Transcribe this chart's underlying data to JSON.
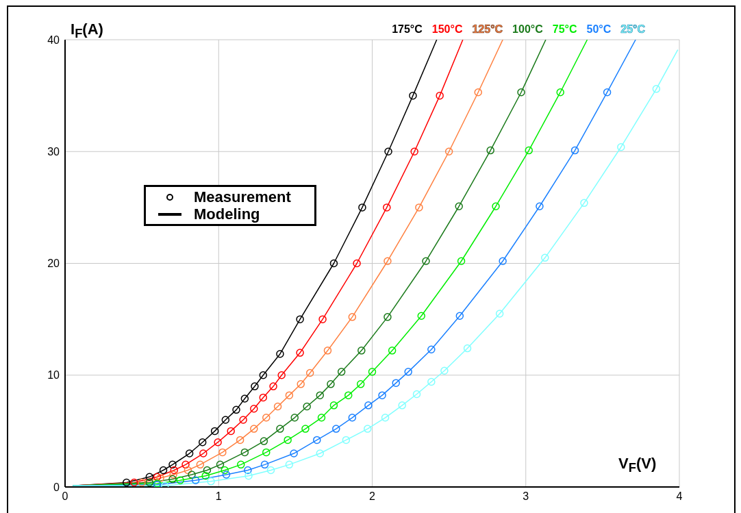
{
  "chart_data": {
    "type": "line",
    "xlabel": "V$_{F}$(V)",
    "ylabel": "I$_{F}$(A)",
    "xlim": [
      0,
      4
    ],
    "xticks": [
      0,
      1,
      2,
      3,
      4
    ],
    "ylim": [
      0,
      40
    ],
    "yticks": [
      0,
      10,
      20,
      30,
      40
    ],
    "grid": true,
    "legend": "top right",
    "annotations": [
      "Measurement",
      "Modeling"
    ],
    "series": [
      {
        "name": "175°C",
        "type": "line",
        "color": "#000000",
        "x": [
          0.05,
          0.4,
          0.55,
          0.64,
          0.7,
          0.81,
          0.895,
          0.975,
          1.045,
          1.115,
          1.17,
          1.235,
          1.29,
          1.4,
          1.53,
          1.75,
          1.935,
          2.105,
          2.265,
          2.42
        ],
        "values": [
          0.1,
          0.4,
          0.9,
          1.5,
          2,
          3,
          4,
          5,
          6,
          6.9,
          7.9,
          9,
          10,
          11.9,
          15,
          20,
          25,
          30,
          35,
          40
        ]
      },
      {
        "type": "scatter",
        "marker": "circle",
        "color": "#000000",
        "x": [
          0.4,
          0.55,
          0.64,
          0.7,
          0.81,
          0.895,
          0.975,
          1.045,
          1.115,
          1.17,
          1.235,
          1.29,
          1.4,
          1.53,
          1.75,
          1.935,
          2.105,
          2.265
        ],
        "values": [
          0.4,
          0.9,
          1.5,
          2,
          3,
          4,
          5,
          6,
          6.9,
          7.9,
          9,
          10,
          11.9,
          15,
          20,
          25,
          30,
          35
        ]
      },
      {
        "name": "150°C",
        "type": "line",
        "color": "#ff0000",
        "x": [
          0.05,
          0.45,
          0.6,
          0.71,
          0.785,
          0.9,
          0.995,
          1.08,
          1.16,
          1.23,
          1.29,
          1.356,
          1.41,
          1.53,
          1.677,
          1.9,
          2.095,
          2.275,
          2.44,
          2.59
        ],
        "values": [
          0.1,
          0.4,
          0.9,
          1.5,
          2,
          3,
          4,
          5,
          6,
          7,
          8,
          9,
          10,
          12,
          15,
          20,
          25,
          30,
          35,
          40
        ]
      },
      {
        "type": "scatter",
        "marker": "circle",
        "color": "#ff0000",
        "x": [
          0.45,
          0.6,
          0.71,
          0.785,
          0.9,
          0.995,
          1.08,
          1.16,
          1.23,
          1.29,
          1.356,
          1.41,
          1.53,
          1.677,
          1.9,
          2.095,
          2.275,
          2.44
        ],
        "values": [
          0.4,
          0.9,
          1.5,
          2,
          3,
          4,
          5,
          6,
          7,
          8,
          9,
          10,
          12,
          15,
          20,
          25,
          30,
          35
        ]
      },
      {
        "name": "125°C",
        "type": "line",
        "color": "#ff8040",
        "x": [
          0.05,
          0.5,
          0.62,
          0.705,
          0.8,
          0.88,
          1.025,
          1.14,
          1.23,
          1.31,
          1.385,
          1.46,
          1.535,
          1.595,
          1.71,
          1.87,
          2.1,
          2.305,
          2.5,
          2.69,
          2.85
        ],
        "values": [
          0.1,
          0.4,
          0.8,
          1.1,
          1.5,
          2,
          3.1,
          4.2,
          5.2,
          6.2,
          7.2,
          8.2,
          9.2,
          10.2,
          12.2,
          15.2,
          20.2,
          25,
          30,
          35.3,
          40
        ]
      },
      {
        "type": "scatter",
        "marker": "circle",
        "color": "#ff8040",
        "x": [
          0.5,
          0.62,
          0.705,
          0.8,
          0.88,
          1.025,
          1.14,
          1.23,
          1.31,
          1.385,
          1.46,
          1.535,
          1.595,
          1.71,
          1.87,
          2.1,
          2.305,
          2.5,
          2.69
        ],
        "values": [
          0.4,
          0.8,
          1.1,
          1.5,
          2,
          3.1,
          4.2,
          5.2,
          6.2,
          7.2,
          8.2,
          9.2,
          10.2,
          12.2,
          15.2,
          20.2,
          25,
          30,
          35.3
        ]
      },
      {
        "name": "100°C",
        "type": "line",
        "color": "#1a7a1a",
        "x": [
          0.05,
          0.55,
          0.7,
          0.825,
          0.925,
          1.01,
          1.17,
          1.295,
          1.4,
          1.495,
          1.575,
          1.66,
          1.73,
          1.8,
          1.93,
          2.1,
          2.35,
          2.565,
          2.77,
          2.97,
          3.13
        ],
        "values": [
          0.1,
          0.4,
          0.7,
          1.1,
          1.5,
          2,
          3.1,
          4.1,
          5.2,
          6.2,
          7.2,
          8.2,
          9.2,
          10.3,
          12.2,
          15.2,
          20.2,
          25.1,
          30.1,
          35.3,
          40
        ]
      },
      {
        "type": "scatter",
        "marker": "circle",
        "color": "#1a7a1a",
        "x": [
          0.55,
          0.7,
          0.825,
          0.925,
          1.01,
          1.17,
          1.295,
          1.4,
          1.495,
          1.575,
          1.66,
          1.73,
          1.8,
          1.93,
          2.1,
          2.35,
          2.565,
          2.77,
          2.97
        ],
        "values": [
          0.4,
          0.7,
          1.1,
          1.5,
          2,
          3.1,
          4.1,
          5.2,
          6.2,
          7.2,
          8.2,
          9.2,
          10.3,
          12.2,
          15.2,
          20.2,
          25.1,
          30.1,
          35.3
        ]
      },
      {
        "name": "75°C",
        "type": "line",
        "color": "#00ee00",
        "x": [
          0.05,
          0.6,
          0.75,
          0.915,
          1.04,
          1.145,
          1.31,
          1.45,
          1.565,
          1.67,
          1.75,
          1.845,
          1.925,
          2.0,
          2.13,
          2.32,
          2.58,
          2.805,
          3.02,
          3.225,
          3.4
        ],
        "values": [
          0.1,
          0.3,
          0.6,
          1,
          1.5,
          2,
          3.1,
          4.2,
          5.2,
          6.2,
          7.3,
          8.2,
          9.2,
          10.3,
          12.2,
          15.3,
          20.2,
          25.1,
          30.1,
          35.3,
          40
        ]
      },
      {
        "type": "scatter",
        "marker": "circle",
        "color": "#00ee00",
        "x": [
          0.6,
          0.75,
          0.915,
          1.04,
          1.145,
          1.31,
          1.45,
          1.565,
          1.67,
          1.75,
          1.845,
          1.925,
          2.0,
          2.13,
          2.32,
          2.58,
          2.805,
          3.02,
          3.225
        ],
        "values": [
          0.3,
          0.6,
          1,
          1.5,
          2,
          3.1,
          4.2,
          5.2,
          6.2,
          7.3,
          8.2,
          9.2,
          10.3,
          12.2,
          15.3,
          20.2,
          25.1,
          30.1,
          35.3
        ]
      },
      {
        "name": "50°C",
        "type": "line",
        "color": "#1a80ff",
        "x": [
          0.05,
          0.6,
          0.85,
          1.05,
          1.19,
          1.3,
          1.49,
          1.64,
          1.765,
          1.87,
          1.975,
          2.065,
          2.155,
          2.235,
          2.385,
          2.57,
          2.85,
          3.09,
          3.32,
          3.53,
          3.715
        ],
        "values": [
          0.1,
          0.2,
          0.6,
          1.1,
          1.5,
          2,
          3,
          4.2,
          5.2,
          6.2,
          7.3,
          8.2,
          9.3,
          10.3,
          12.3,
          15.3,
          20.2,
          25.1,
          30.1,
          35.3,
          40
        ]
      },
      {
        "type": "scatter",
        "marker": "circle",
        "color": "#1a80ff",
        "x": [
          0.6,
          0.85,
          1.05,
          1.19,
          1.3,
          1.49,
          1.64,
          1.765,
          1.87,
          1.975,
          2.065,
          2.155,
          2.235,
          2.385,
          2.57,
          2.85,
          3.09,
          3.32,
          3.53
        ],
        "values": [
          0.2,
          0.6,
          1.1,
          1.5,
          2,
          3,
          4.2,
          5.2,
          6.2,
          7.3,
          8.2,
          9.3,
          10.3,
          12.3,
          15.3,
          20.2,
          25.1,
          30.1,
          35.3
        ]
      },
      {
        "name": "25°C",
        "type": "line",
        "color": "#80ffff",
        "x": [
          0.05,
          0.65,
          0.95,
          1.195,
          1.34,
          1.46,
          1.66,
          1.83,
          1.97,
          2.085,
          2.195,
          2.29,
          2.385,
          2.47,
          2.62,
          2.83,
          3.125,
          3.38,
          3.62,
          3.85,
          3.99
        ],
        "values": [
          0.1,
          0.1,
          0.5,
          1,
          1.5,
          2,
          3,
          4.2,
          5.2,
          6.2,
          7.3,
          8.3,
          9.4,
          10.4,
          12.4,
          15.5,
          20.5,
          25.4,
          30.4,
          35.6,
          39.1
        ]
      },
      {
        "type": "scatter",
        "marker": "circle",
        "color": "#80ffff",
        "x": [
          0.65,
          0.95,
          1.195,
          1.34,
          1.46,
          1.66,
          1.83,
          1.97,
          2.085,
          2.195,
          2.29,
          2.385,
          2.47,
          2.62,
          2.83,
          3.125,
          3.38,
          3.62,
          3.85
        ],
        "values": [
          0.1,
          0.5,
          1,
          1.5,
          2,
          3,
          4.2,
          5.2,
          6.2,
          7.3,
          8.3,
          9.4,
          10.4,
          12.4,
          15.5,
          20.5,
          25.4,
          30.4,
          35.6
        ]
      }
    ]
  }
}
